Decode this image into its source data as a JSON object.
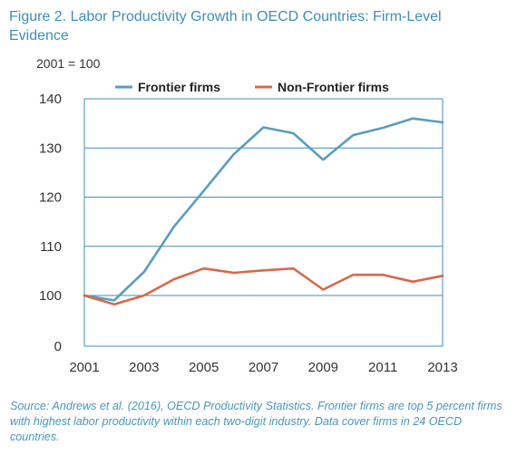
{
  "figure": {
    "title": "Figure 2. Labor Productivity Growth in OECD Countries: Firm-Level Evidence",
    "note": "Source: Andrews et al. (2016), OECD Productivity Statistics. Frontier firms are top 5 percent firms with highest labor productivity within each two-digit industry. Data cover firms in 24 OECD countries."
  },
  "chart_data": {
    "type": "line",
    "title": "Figure 2. Labor Productivity Growth in OECD Countries: Firm-Level Evidence",
    "ylabel": "2001 = 100",
    "xlabel": "",
    "x": [
      2001,
      2002,
      2003,
      2004,
      2005,
      2006,
      2007,
      2008,
      2009,
      2010,
      2011,
      2012,
      2013
    ],
    "x_ticks": [
      "2001",
      "2003",
      "2005",
      "2007",
      "2009",
      "2011",
      "2013"
    ],
    "y_ticks": [
      "0",
      "100",
      "110",
      "120",
      "130",
      "140"
    ],
    "y_axis_note": "broken axis: 0 then 100 to 140",
    "series": [
      {
        "name": "Frontier firms",
        "color": "#5b9cc0",
        "values": [
          100,
          99.0,
          104.8,
          114.0,
          121.3,
          128.7,
          134.2,
          133.0,
          127.6,
          132.6,
          134.1,
          136.0,
          135.2
        ]
      },
      {
        "name": "Non-Frontier firms",
        "color": "#d9694a",
        "values": [
          100,
          98.2,
          100.0,
          103.3,
          105.5,
          104.6,
          105.1,
          105.5,
          101.2,
          104.2,
          104.2,
          102.8,
          104.0
        ]
      }
    ],
    "grid": true,
    "legend": "top"
  }
}
